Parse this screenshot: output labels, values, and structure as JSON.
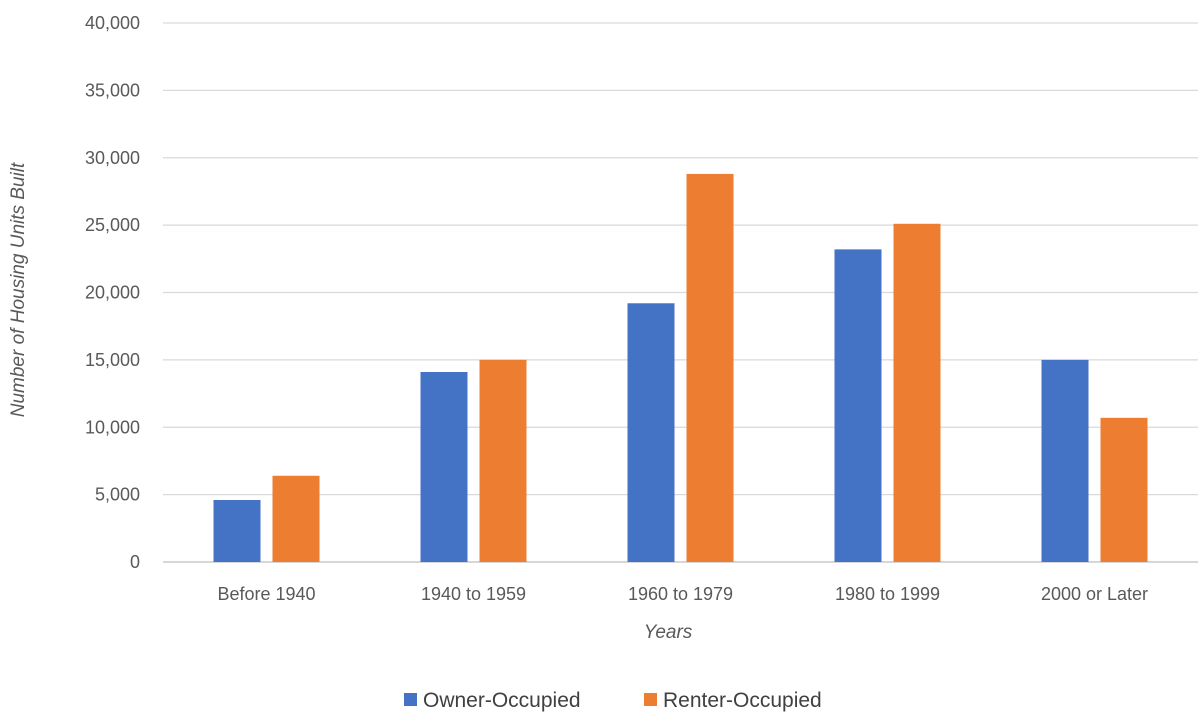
{
  "chart_data": {
    "type": "bar",
    "categories": [
      "Before 1940",
      "1940 to 1959",
      "1960 to 1979",
      "1980 to 1999",
      "2000 or Later"
    ],
    "series": [
      {
        "name": "Owner-Occupied",
        "color": "#4472C4",
        "values": [
          4600,
          14100,
          19200,
          23200,
          15000
        ]
      },
      {
        "name": "Renter-Occupied",
        "color": "#ED7D31",
        "values": [
          6400,
          15000,
          28800,
          25100,
          10700
        ]
      }
    ],
    "y_ticks": [
      "0",
      "5,000",
      "10,000",
      "15,000",
      "20,000",
      "25,000",
      "30,000",
      "35,000",
      "40,000"
    ],
    "ylim": [
      0,
      40000
    ],
    "y_step": 5000,
    "xlabel": "Years",
    "ylabel": "Number of Housing Units Built",
    "grid": true,
    "legend_position": "bottom"
  }
}
